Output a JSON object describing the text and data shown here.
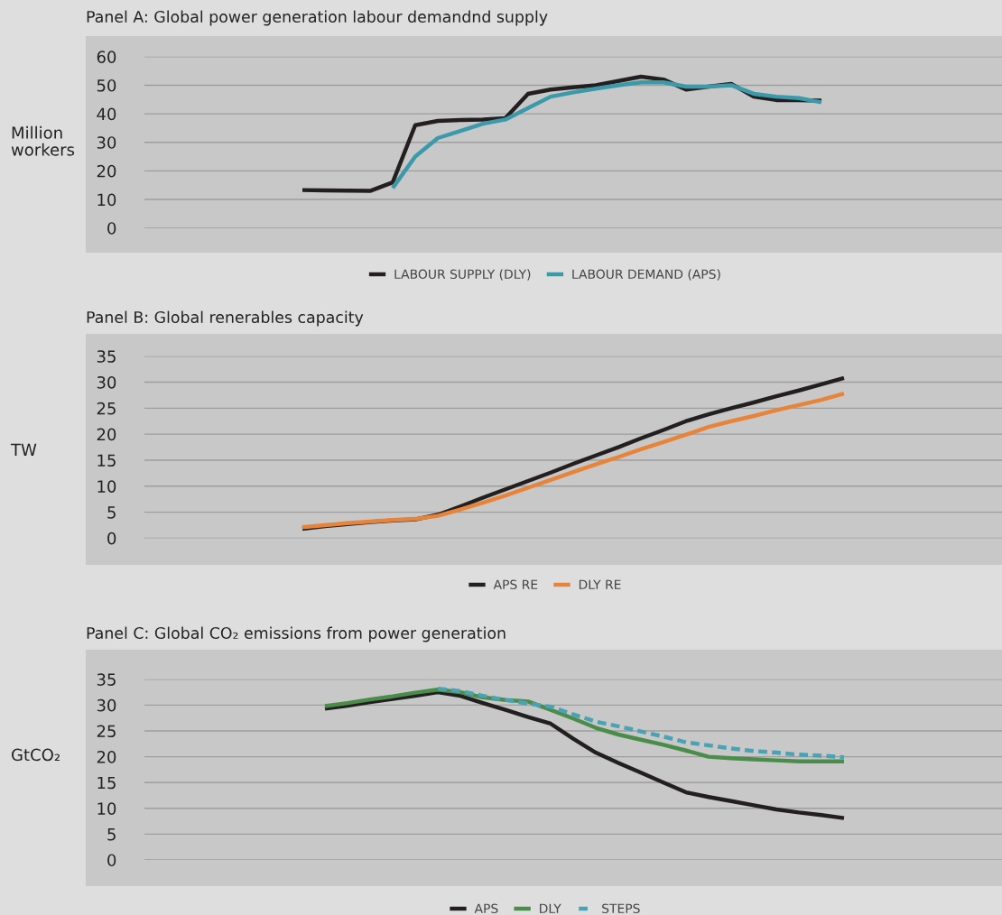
{
  "chart_data": [
    {
      "type": "line",
      "title": "Panel A: Global power generation labour demandnd supply",
      "ylabel": "Million\nworkers",
      "categories": [
        null,
        null,
        null,
        null,
        null,
        null,
        null,
        null,
        null,
        null,
        null,
        null,
        null,
        null,
        null,
        null,
        null,
        null,
        null,
        null,
        null,
        null,
        null,
        null,
        null,
        null,
        null,
        null,
        null,
        null,
        null,
        null,
        null,
        null,
        null,
        null,
        null,
        null,
        null
      ],
      "series": [
        {
          "name": "LABOUR SUPPLY (DLY)",
          "color": "#231f20",
          "values": [
            null,
            null,
            null,
            null,
            null,
            null,
            null,
            13.3,
            13.2,
            13.1,
            13,
            16,
            36,
            37.5,
            37.8,
            38,
            38.5,
            47,
            48.5,
            49.3,
            50,
            51.5,
            53,
            52,
            48.5,
            49.5,
            50.5,
            46,
            44.8,
            44.8,
            44.6,
            null,
            null,
            null,
            null,
            null,
            null,
            null,
            null
          ]
        },
        {
          "name": "LABOUR DEMAND (APS)",
          "color": "#3a9aaa",
          "values": [
            null,
            null,
            null,
            null,
            null,
            null,
            null,
            null,
            null,
            null,
            null,
            14,
            25,
            31.5,
            34,
            36.5,
            38,
            42,
            46,
            47.5,
            48.8,
            50,
            51,
            51,
            49.5,
            49.5,
            50,
            47,
            46,
            45.5,
            44,
            null,
            null,
            null,
            null,
            null,
            null,
            null,
            null
          ]
        }
      ],
      "ylim": [
        0,
        60
      ],
      "yticks": [
        0,
        10,
        20,
        30,
        40,
        50,
        60
      ],
      "grid": "y",
      "legend": "bottom",
      "tick_labels": "y"
    },
    {
      "type": "line",
      "title": "Panel B: Global renerables capacity",
      "ylabel": "TW",
      "categories": [
        null,
        null,
        null,
        null,
        null,
        null,
        null,
        null,
        null,
        null,
        null,
        null,
        null,
        null,
        null,
        null,
        null,
        null,
        null,
        null,
        null,
        null,
        null,
        null,
        null,
        null,
        null,
        null,
        null,
        null,
        null,
        null,
        null,
        null,
        null,
        null,
        null,
        null,
        null
      ],
      "series": [
        {
          "name": "APS RE",
          "color": "#231f20",
          "values": [
            null,
            null,
            null,
            null,
            null,
            null,
            null,
            1.8,
            2.3,
            2.7,
            3.1,
            3.4,
            3.6,
            4.5,
            6.1,
            7.8,
            9.4,
            11,
            12.6,
            14.3,
            15.9,
            17.5,
            19.2,
            20.8,
            22.5,
            23.8,
            25,
            26.1,
            27.3,
            28.4,
            29.6,
            30.8,
            null,
            null,
            null,
            null,
            null,
            null,
            null
          ]
        },
        {
          "name": "DLY RE",
          "color": "#e8843a",
          "values": [
            null,
            null,
            null,
            null,
            null,
            null,
            null,
            2.1,
            2.5,
            2.9,
            3.2,
            3.5,
            3.7,
            4.3,
            5.5,
            6.8,
            8.2,
            9.7,
            11.2,
            12.7,
            14.2,
            15.6,
            17.1,
            18.5,
            19.9,
            21.4,
            22.5,
            23.5,
            24.6,
            25.6,
            26.6,
            27.8,
            null,
            null,
            null,
            null,
            null,
            null,
            null
          ]
        }
      ],
      "ylim": [
        0,
        35
      ],
      "yticks": [
        0,
        5,
        10,
        15,
        20,
        25,
        30,
        35
      ],
      "grid": "y",
      "legend": "bottom",
      "tick_labels": "y"
    },
    {
      "type": "line",
      "title": "Panel C: Global CO₂ emissions from power generation",
      "ylabel": "GtCO₂",
      "categories": [
        null,
        null,
        null,
        null,
        null,
        null,
        null,
        null,
        null,
        null,
        null,
        null,
        null,
        null,
        null,
        null,
        null,
        null,
        null,
        null,
        null,
        null,
        null,
        null,
        null,
        null,
        null,
        null,
        null,
        null,
        null,
        null,
        null,
        null,
        null,
        null,
        null,
        null,
        null
      ],
      "series": [
        {
          "name": "APS",
          "color": "#231f20",
          "line_style": "solid",
          "values": [
            null,
            null,
            null,
            null,
            null,
            null,
            null,
            null,
            29.3,
            29.9,
            30.6,
            31.2,
            31.8,
            32.5,
            31.8,
            30.4,
            29.1,
            27.7,
            26.4,
            23.5,
            20.8,
            18.8,
            16.9,
            15,
            13.1,
            12.2,
            11.4,
            10.6,
            9.8,
            9.2,
            8.7,
            8.1,
            null,
            null,
            null,
            null,
            null,
            null,
            null
          ]
        },
        {
          "name": "DLY",
          "color": "#4a8c4a",
          "line_style": "solid",
          "values": [
            null,
            null,
            null,
            null,
            null,
            null,
            null,
            null,
            29.8,
            30.4,
            31.1,
            31.7,
            32.4,
            33,
            32.5,
            31.5,
            31,
            30.7,
            29.1,
            27.4,
            25.6,
            24.3,
            23.3,
            22.3,
            21.2,
            20,
            19.7,
            19.5,
            19.3,
            19.1,
            19.1,
            19.1,
            null,
            null,
            null,
            null,
            null,
            null,
            null
          ]
        },
        {
          "name": "STEPS",
          "color": "#4aa3b5",
          "line_style": "dashed",
          "values": [
            null,
            null,
            null,
            null,
            null,
            null,
            null,
            null,
            null,
            null,
            null,
            null,
            null,
            33.2,
            32.7,
            31.8,
            31,
            30.3,
            29.7,
            28.2,
            26.8,
            25.9,
            24.9,
            23.9,
            22.8,
            22.2,
            21.6,
            21.1,
            20.8,
            20.4,
            20.2,
            19.9,
            null,
            null,
            null,
            null,
            null,
            null,
            null
          ]
        }
      ],
      "ylim": [
        0,
        35
      ],
      "yticks": [
        0,
        5,
        10,
        15,
        20,
        25,
        30,
        35
      ],
      "grid": "y",
      "legend": "bottom",
      "tick_labels": "y"
    }
  ]
}
